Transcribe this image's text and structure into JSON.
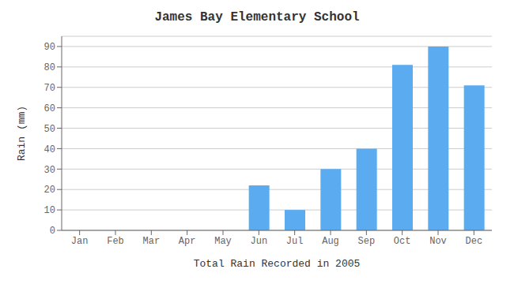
{
  "chart_data": {
    "type": "bar",
    "title": "James Bay Elementary School",
    "xlabel": "Total Rain Recorded in 2005",
    "ylabel": "Rain (mm)",
    "categories": [
      "Jan",
      "Feb",
      "Mar",
      "Apr",
      "May",
      "Jun",
      "Jul",
      "Aug",
      "Sep",
      "Oct",
      "Nov",
      "Dec"
    ],
    "values": [
      0,
      0,
      0,
      0,
      0,
      22,
      10,
      30,
      40,
      81,
      90,
      71
    ],
    "color": "#5aabf0",
    "ylim": [
      0,
      95
    ],
    "yticks": [
      0,
      10,
      20,
      30,
      40,
      50,
      60,
      70,
      80,
      90
    ],
    "grid": true
  }
}
